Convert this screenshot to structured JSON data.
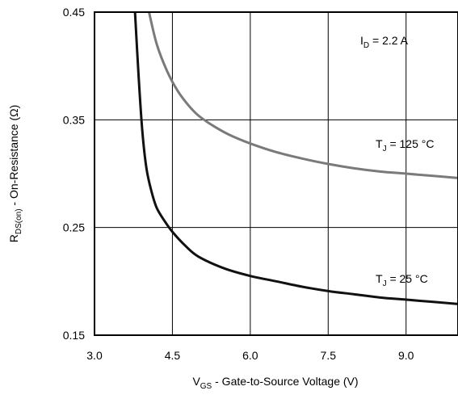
{
  "chart_data": {
    "type": "line",
    "xlabel": {
      "main": "V",
      "sub": "GS",
      "rest": " - Gate-to-Source Voltage (V)"
    },
    "ylabel": {
      "main": "R",
      "sub": "DS(on)",
      "rest": " - On-Resistance (Ω)"
    },
    "xlim": [
      3.0,
      10.0
    ],
    "ylim": [
      0.15,
      0.45
    ],
    "grid": true,
    "xticks": [
      {
        "value": 3.0,
        "label": "3.0"
      },
      {
        "value": 4.5,
        "label": "4.5"
      },
      {
        "value": 6.0,
        "label": "6.0"
      },
      {
        "value": 7.5,
        "label": "7.5"
      },
      {
        "value": 9.0,
        "label": "9.0"
      }
    ],
    "yticks": [
      {
        "value": 0.15,
        "label": "0.15"
      },
      {
        "value": 0.25,
        "label": "0.25"
      },
      {
        "value": 0.35,
        "label": "0.35"
      },
      {
        "value": 0.45,
        "label": "0.45"
      }
    ],
    "annotations": {
      "id": {
        "main": "I",
        "sub": "D",
        "rest": " = 2.2 A"
      }
    },
    "series": [
      {
        "label": {
          "main": "T",
          "sub": "J",
          "rest": " = 125 °C"
        },
        "color": "#7a7a7a",
        "x": [
          4.05,
          4.2,
          4.4,
          4.6,
          4.8,
          5.0,
          5.3,
          5.6,
          6.0,
          6.5,
          7.0,
          7.5,
          8.0,
          8.5,
          9.0,
          9.5,
          10.0
        ],
        "y": [
          0.45,
          0.42,
          0.395,
          0.377,
          0.364,
          0.354,
          0.344,
          0.336,
          0.328,
          0.32,
          0.314,
          0.309,
          0.305,
          0.302,
          0.3,
          0.298,
          0.296
        ]
      },
      {
        "label": {
          "main": "T",
          "sub": "J",
          "rest": " = 25 °C"
        },
        "color": "#111111",
        "x": [
          3.78,
          3.85,
          3.92,
          4.0,
          4.1,
          4.2,
          4.35,
          4.5,
          4.75,
          5.0,
          5.5,
          6.0,
          6.5,
          7.0,
          7.5,
          8.0,
          8.5,
          9.0,
          9.5,
          10.0
        ],
        "y": [
          0.45,
          0.39,
          0.34,
          0.305,
          0.283,
          0.268,
          0.256,
          0.246,
          0.233,
          0.223,
          0.212,
          0.205,
          0.2,
          0.195,
          0.191,
          0.188,
          0.185,
          0.183,
          0.181,
          0.179
        ]
      }
    ]
  }
}
